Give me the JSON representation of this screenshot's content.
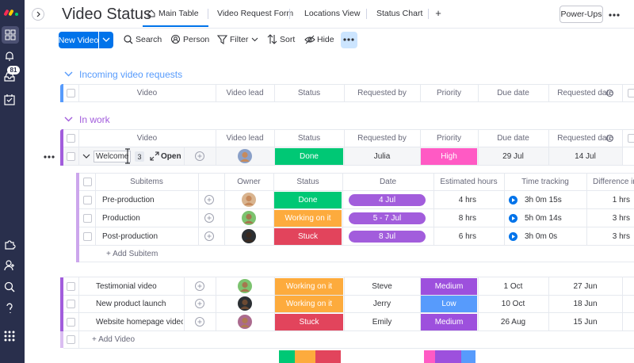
{
  "sidebar": {
    "notification_badge": "81"
  },
  "header": {
    "title": "Video Status",
    "tabs": [
      "Main Table",
      "Video Request Form",
      "Locations View",
      "Status Chart"
    ],
    "add_tab": "+",
    "power_ups": "Power-Ups"
  },
  "toolbar": {
    "new_item": "New Video",
    "actions": [
      "Search",
      "Person",
      "Filter",
      "Sort",
      "Hide"
    ]
  },
  "groups": [
    {
      "title": "Incoming video requests",
      "color": "#579bfc",
      "columns": [
        "Video",
        "Video lead",
        "Status",
        "Requested by",
        "Priority",
        "Due date",
        "Requested date"
      ]
    },
    {
      "title": "In work",
      "color": "#a25ddc",
      "columns": [
        "Video",
        "Video lead",
        "Status",
        "Requested by",
        "Priority",
        "Due date",
        "Requested date"
      ],
      "items": [
        {
          "name": "Welcome",
          "subitem_count": 3,
          "open": "Open",
          "status": {
            "text": "Done",
            "color": "#00c875"
          },
          "requested_by": "Julia",
          "priority": {
            "text": "High",
            "color": "#ff5ac4"
          },
          "due_date": "29 Jul",
          "requested_date": "14 Jul"
        },
        {
          "name": "Testimonial video",
          "status": {
            "text": "Working on it",
            "color": "#fdab3d"
          },
          "requested_by": "Steve",
          "priority": {
            "text": "Medium",
            "color": "#9d50dd"
          },
          "due_date": "1 Oct",
          "requested_date": "27 Jun"
        },
        {
          "name": "New product launch",
          "status": {
            "text": "Working on it",
            "color": "#fdab3d"
          },
          "requested_by": "Jerry",
          "priority": {
            "text": "Low",
            "color": "#579bfc"
          },
          "due_date": "10 Oct",
          "requested_date": "18 Jun"
        },
        {
          "name": "Website homepage video",
          "status": {
            "text": "Stuck",
            "color": "#e2445c"
          },
          "requested_by": "Emily",
          "priority": {
            "text": "Medium",
            "color": "#9d50dd"
          },
          "due_date": "26 Aug",
          "requested_date": "15 Jun"
        }
      ],
      "add_item": "+ Add Video"
    }
  ],
  "subitems": {
    "columns": [
      "Subitems",
      "Owner",
      "Status",
      "Date",
      "Estimated hours",
      "Time tracking",
      "Difference in"
    ],
    "rows": [
      {
        "name": "Pre-production",
        "status": {
          "text": "Done",
          "color": "#00c875"
        },
        "date": "4 Jul",
        "estimated_hours": "4 hrs",
        "time_tracking": "3h 0m 15s",
        "difference": "1 hrs"
      },
      {
        "name": "Production",
        "status": {
          "text": "Working on it",
          "color": "#fdab3d"
        },
        "date": "5 - 7 Jul",
        "estimated_hours": "8 hrs",
        "time_tracking": "5h 0m 14s",
        "difference": "3 hrs"
      },
      {
        "name": "Post-production",
        "status": {
          "text": "Stuck",
          "color": "#e2445c"
        },
        "date": "8 Jul",
        "estimated_hours": "6 hrs",
        "time_tracking": "3h 0m 0s",
        "difference": "3 hrs"
      }
    ],
    "date_color": "#a25ddc",
    "add": "+ Add Subitem"
  }
}
